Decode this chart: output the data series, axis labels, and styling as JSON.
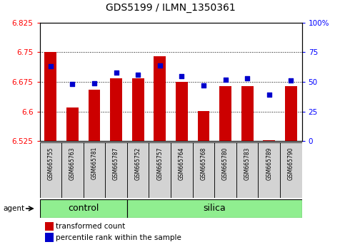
{
  "title": "GDS5199 / ILMN_1350361",
  "samples": [
    "GSM665755",
    "GSM665763",
    "GSM665781",
    "GSM665787",
    "GSM665752",
    "GSM665757",
    "GSM665764",
    "GSM665768",
    "GSM665780",
    "GSM665783",
    "GSM665789",
    "GSM665790"
  ],
  "groups": [
    "control",
    "control",
    "control",
    "control",
    "silica",
    "silica",
    "silica",
    "silica",
    "silica",
    "silica",
    "silica",
    "silica"
  ],
  "bar_values": [
    6.75,
    6.61,
    6.655,
    6.685,
    6.685,
    6.74,
    6.675,
    6.602,
    6.665,
    6.665,
    6.527,
    6.665
  ],
  "dot_values": [
    63,
    48,
    49,
    58,
    56,
    64,
    55,
    47,
    52,
    53,
    39,
    51
  ],
  "y_min": 6.525,
  "y_max": 6.825,
  "y_ticks": [
    6.525,
    6.6,
    6.675,
    6.75,
    6.825
  ],
  "y_tick_labels": [
    "6.525",
    "6.6",
    "6.675",
    "6.75",
    "6.825"
  ],
  "y2_ticks": [
    0,
    25,
    50,
    75,
    100
  ],
  "y2_tick_labels": [
    "0",
    "25",
    "50",
    "75",
    "100%"
  ],
  "bar_color": "#cc0000",
  "dot_color": "#0000cc",
  "bar_baseline": 6.525,
  "group_color": "#90ee90",
  "sample_box_color": "#d3d3d3",
  "legend_items": [
    "transformed count",
    "percentile rank within the sample"
  ],
  "grid_lines": [
    6.6,
    6.675,
    6.75
  ],
  "title_fontsize": 10,
  "tick_fontsize": 7.5,
  "sample_fontsize": 5.5,
  "group_fontsize": 9
}
